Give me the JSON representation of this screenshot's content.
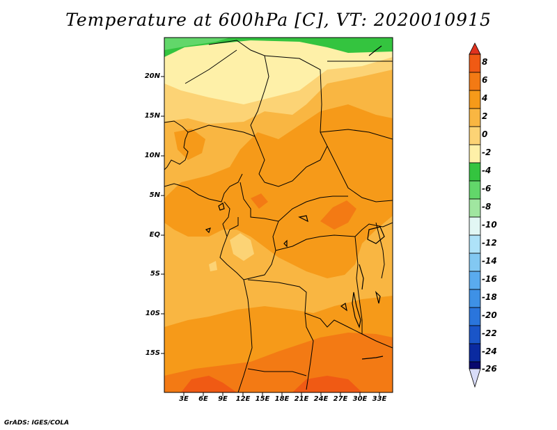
{
  "title": "Temperature at 600hPa [C], VT: 2020010915",
  "footer": "GrADS: IGES/COLA",
  "lat_ticks": [
    "20N",
    "15N",
    "10N",
    "5N",
    "EQ",
    "5S",
    "10S",
    "15S"
  ],
  "lon_ticks": [
    "3E",
    "6E",
    "9E",
    "12E",
    "15E",
    "18E",
    "21E",
    "24E",
    "27E",
    "30E",
    "33E"
  ],
  "colorbar": {
    "labels": [
      "8",
      "6",
      "4",
      "2",
      "0",
      "-2",
      "-4",
      "-6",
      "-8",
      "-10",
      "-12",
      "-14",
      "-16",
      "-18",
      "-20",
      "-22",
      "-24",
      "-26"
    ],
    "colors": {
      "above_8": "#e0321e",
      "6_8": "#f05a14",
      "4_6": "#f37a14",
      "2_4": "#f69a19",
      "0_2": "#f9b642",
      "m2_0": "#fcd375",
      "m4_m2": "#fef0a8",
      "m6_m4": "#34c43f",
      "m8_m6": "#62d76a",
      "m10_m8": "#a0e6a0",
      "m12_m10": "#e2f7f4",
      "m14_m12": "#aee2f8",
      "m16_m14": "#82c8f2",
      "m18_m16": "#5aabee",
      "m20_m18": "#3e91e6",
      "m22_m20": "#2a75dc",
      "m24_m22": "#1a55c8",
      "m26_m24": "#0a2aa0",
      "below_m26": "#08086e",
      "under": "#d8dcf8"
    }
  }
}
